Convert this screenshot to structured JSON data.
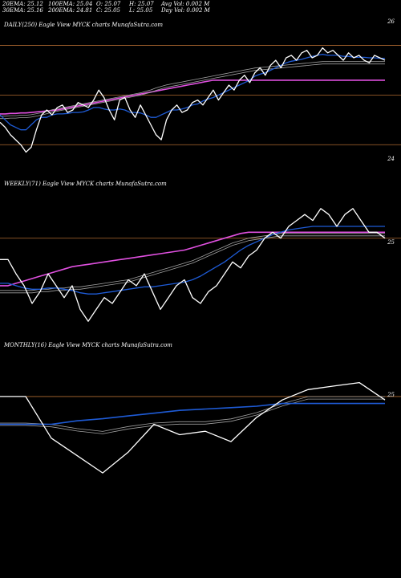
{
  "header": {
    "ema20": "20EMA: 25.12",
    "ema30": "30EMA: 25.16",
    "ema100": "100EMA: 25.04",
    "ema200": "200EMA: 24.81",
    "open": "O: 25.07",
    "close": "C: 25.05",
    "high": "H: 25.07",
    "low": "L: 25.05",
    "avg_vol": "Avg Vol: 0.002  M",
    "day_vol": "Day Vol: 0.002  M"
  },
  "colors": {
    "background": "#000000",
    "price": "#ffffff",
    "ema_short": "#1e5bd6",
    "ema_long": "#e050e0",
    "ema_mid": "#a0a0a0",
    "level_line": "#b06a30"
  },
  "panels": [
    {
      "title": "DAILY(250) Eagle  View  MYCK charts MunafaSutra.com",
      "price_labels": [
        {
          "text": "26"
        },
        {
          "text": "24"
        }
      ]
    },
    {
      "title": "WEEKLY(71) Eagle  View  MYCK charts MunafaSutra.com",
      "price_labels": [
        {
          "text": "25"
        }
      ]
    },
    {
      "title": "MONTHLY(16) Eagle  View  MYCK charts MunafaSutra.com",
      "price_labels": [
        {
          "text": "25"
        }
      ]
    }
  ],
  "chart_data": [
    {
      "type": "line",
      "title": "DAILY(250) Eagle  View  MYCK charts MunafaSutra.com",
      "ylim": [
        23.6,
        26.3
      ],
      "reference_levels": [
        26.0,
        24.0,
        25.0
      ],
      "series": [
        {
          "values": [
            24.45,
            24.35,
            24.2,
            24.1,
            24.0,
            23.85,
            23.95,
            24.3,
            24.6,
            24.7,
            24.6,
            24.75,
            24.8,
            24.65,
            24.7,
            24.85,
            24.8,
            24.75,
            24.9,
            25.1,
            24.95,
            24.7,
            24.5,
            24.9,
            24.95,
            24.7,
            24.55,
            24.8,
            24.6,
            24.4,
            24.2,
            24.1,
            24.5,
            24.7,
            24.8,
            24.65,
            24.7,
            24.85,
            24.9,
            24.8,
            24.95,
            25.1,
            24.9,
            25.05,
            25.2,
            25.1,
            25.3,
            25.4,
            25.25,
            25.45,
            25.55,
            25.4,
            25.6,
            25.7,
            25.55,
            25.75,
            25.8,
            25.7,
            25.85,
            25.9,
            25.75,
            25.8,
            25.95,
            25.85,
            25.9,
            25.8,
            25.7,
            25.85,
            25.75,
            25.8,
            25.7,
            25.65,
            25.8,
            25.75,
            25.7
          ]
        },
        {
          "values": [
            24.6,
            24.5,
            24.4,
            24.35,
            24.3,
            24.3,
            24.4,
            24.5,
            24.55,
            24.55,
            24.6,
            24.62,
            24.62,
            24.63,
            24.65,
            24.65,
            24.66,
            24.7,
            24.75,
            24.75,
            24.72,
            24.7,
            24.7,
            24.72,
            24.7,
            24.65,
            24.65,
            24.64,
            24.6,
            24.55,
            24.55,
            24.6,
            24.65,
            24.7,
            24.7,
            24.72,
            24.75,
            24.8,
            24.82,
            24.88,
            24.92,
            24.95,
            25.0,
            25.05,
            25.1,
            25.15,
            25.2,
            25.25,
            25.3,
            25.38,
            25.42,
            25.45,
            25.5,
            25.55,
            25.6,
            25.65,
            25.68,
            25.7,
            25.72,
            25.75,
            25.78,
            25.8,
            25.82,
            25.8,
            25.8,
            25.8,
            25.78,
            25.78,
            25.76,
            25.76,
            25.76,
            25.75,
            25.75,
            25.74,
            25.74
          ]
        },
        {
          "values": [
            24.55,
            24.55,
            24.56,
            24.56,
            24.57,
            24.57,
            24.58,
            24.6,
            24.62,
            24.65,
            24.68,
            24.7,
            24.72,
            24.74,
            24.76,
            24.78,
            24.8,
            24.82,
            24.84,
            24.86,
            24.88,
            24.9,
            24.92,
            24.94,
            24.96,
            24.98,
            25.0,
            25.02,
            25.05,
            25.08,
            25.12,
            25.15,
            25.18,
            25.2,
            25.22,
            25.24,
            25.26,
            25.28,
            25.3,
            25.32,
            25.34,
            25.36,
            25.38,
            25.4,
            25.42,
            25.44,
            25.46,
            25.48,
            25.5,
            25.52,
            25.53,
            25.54,
            25.55,
            25.56,
            25.57,
            25.58,
            25.59,
            25.6,
            25.61,
            25.62,
            25.63,
            25.64,
            25.65,
            25.65,
            25.65,
            25.65,
            25.65,
            25.65,
            25.65,
            25.65,
            25.65,
            25.65,
            25.65,
            25.65,
            25.65
          ]
        },
        {
          "values": [
            24.62,
            24.62,
            24.63,
            24.63,
            24.64,
            24.64,
            24.65,
            24.66,
            24.67,
            24.68,
            24.69,
            24.7,
            24.72,
            24.74,
            24.76,
            24.78,
            24.8,
            24.82,
            24.84,
            24.86,
            24.88,
            24.9,
            24.92,
            24.94,
            24.96,
            24.98,
            25.0,
            25.02,
            25.04,
            25.06,
            25.08,
            25.1,
            25.12,
            25.14,
            25.16,
            25.18,
            25.2,
            25.22,
            25.24,
            25.26,
            25.28,
            25.3,
            25.3,
            25.3,
            25.3,
            25.3,
            25.3,
            25.3,
            25.3,
            25.3,
            25.3,
            25.3,
            25.3,
            25.3,
            25.3,
            25.3,
            25.3,
            25.3,
            25.3,
            25.3,
            25.3,
            25.3,
            25.3,
            25.3,
            25.3,
            25.3,
            25.3,
            25.3,
            25.3,
            25.3,
            25.3,
            25.3,
            25.3,
            25.3,
            25.3
          ]
        }
      ]
    },
    {
      "type": "line",
      "title": "WEEKLY(71) Eagle  View  MYCK charts MunafaSutra.com",
      "ylim": [
        24.2,
        25.35
      ],
      "reference_levels": [
        25.0
      ],
      "series": [
        {
          "values": [
            24.82,
            24.82,
            24.7,
            24.6,
            24.45,
            24.55,
            24.7,
            24.6,
            24.5,
            24.6,
            24.4,
            24.3,
            24.4,
            24.5,
            24.45,
            24.55,
            24.65,
            24.6,
            24.7,
            24.55,
            24.4,
            24.5,
            24.6,
            24.65,
            24.5,
            24.45,
            24.55,
            24.6,
            24.7,
            24.8,
            24.75,
            24.85,
            24.9,
            25.0,
            25.05,
            25.0,
            25.1,
            25.15,
            25.2,
            25.15,
            25.25,
            25.2,
            25.1,
            25.2,
            25.25,
            25.15,
            25.05,
            25.05,
            25.0
          ]
        },
        {
          "values": [
            24.62,
            24.62,
            24.6,
            24.58,
            24.57,
            24.57,
            24.58,
            24.58,
            24.57,
            24.56,
            24.54,
            24.53,
            24.53,
            24.54,
            24.55,
            24.56,
            24.57,
            24.58,
            24.59,
            24.59,
            24.6,
            24.61,
            24.62,
            24.63,
            24.65,
            24.68,
            24.72,
            24.76,
            24.8,
            24.85,
            24.9,
            24.94,
            24.97,
            25.0,
            25.03,
            25.05,
            25.07,
            25.08,
            25.09,
            25.1,
            25.1,
            25.1,
            25.1,
            25.1,
            25.1,
            25.1,
            25.1,
            25.1,
            25.1
          ]
        },
        {
          "values": [
            24.6,
            24.6,
            24.62,
            24.64,
            24.66,
            24.68,
            24.7,
            24.72,
            24.74,
            24.76,
            24.77,
            24.78,
            24.79,
            24.8,
            24.81,
            24.82,
            24.83,
            24.84,
            24.85,
            24.86,
            24.87,
            24.88,
            24.89,
            24.9,
            24.92,
            24.94,
            24.96,
            24.98,
            25.0,
            25.02,
            25.04,
            25.05,
            25.05,
            25.05,
            25.05,
            25.05,
            25.05,
            25.05,
            25.05,
            25.05,
            25.05,
            25.05,
            25.05,
            25.05,
            25.05,
            25.05,
            25.05,
            25.05,
            25.05
          ]
        },
        {
          "values": [
            24.55,
            24.55,
            24.55,
            24.55,
            24.55,
            24.56,
            24.56,
            24.57,
            24.57,
            24.58,
            24.58,
            24.59,
            24.6,
            24.61,
            24.62,
            24.63,
            24.64,
            24.66,
            24.68,
            24.7,
            24.72,
            24.74,
            24.76,
            24.78,
            24.8,
            24.83,
            24.86,
            24.89,
            24.92,
            24.95,
            24.97,
            24.99,
            25.0,
            25.01,
            25.02,
            25.03,
            25.03,
            25.03,
            25.03,
            25.03,
            25.03,
            25.03,
            25.03,
            25.03,
            25.03,
            25.03,
            25.03,
            25.03,
            25.03
          ]
        }
      ]
    },
    {
      "type": "line",
      "title": "MONTHLY(16) Eagle  View  MYCK charts MunafaSutra.com",
      "ylim": [
        23.6,
        25.45
      ],
      "reference_levels": [
        25.0
      ],
      "series": [
        {
          "values": [
            25.0,
            25.0,
            24.4,
            24.15,
            23.9,
            24.2,
            24.6,
            24.45,
            24.5,
            24.35,
            24.7,
            24.95,
            25.1,
            25.15,
            25.2,
            24.95
          ]
        },
        {
          "values": [
            24.6,
            24.6,
            24.6,
            24.65,
            24.68,
            24.72,
            24.76,
            24.8,
            24.82,
            24.84,
            24.86,
            24.9,
            24.9,
            24.9,
            24.9,
            24.9
          ]
        },
        {
          "values": [
            24.6,
            24.6,
            24.58,
            24.52,
            24.48,
            24.55,
            24.6,
            24.62,
            24.62,
            24.66,
            24.75,
            24.88,
            24.98,
            24.98,
            24.98,
            24.98
          ]
        }
      ]
    }
  ]
}
